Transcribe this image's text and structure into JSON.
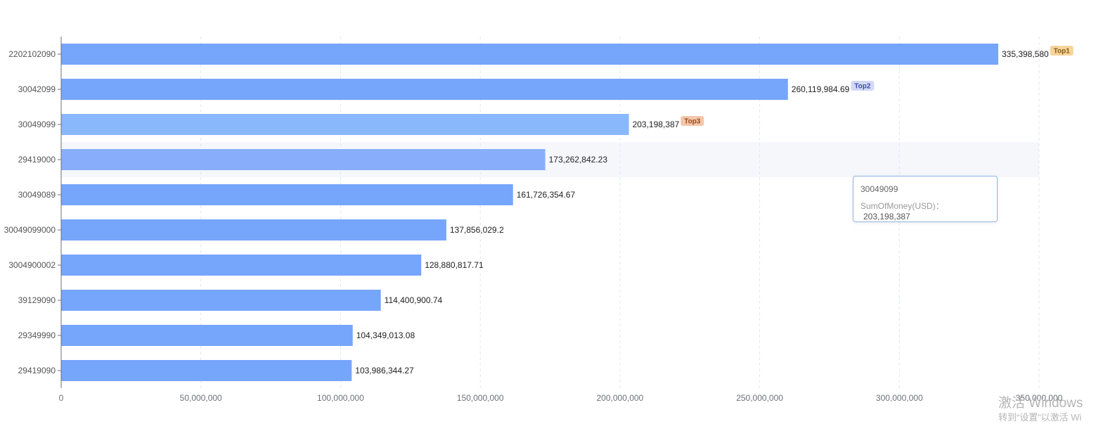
{
  "chart_data": {
    "type": "bar",
    "orientation": "horizontal",
    "categories": [
      "2202102090",
      "30042099",
      "30049099",
      "29419000",
      "30049089",
      "30049099000",
      "3004900002",
      "39129090",
      "29349990",
      "29419090"
    ],
    "series": [
      {
        "values": [
          335398580,
          260119984.69,
          203198387,
          173262842.23,
          161726354.67,
          137856029.2,
          128880817.71,
          114400900.74,
          104349013.08,
          103986344.27
        ]
      }
    ],
    "value_labels": [
      "335,398,580",
      "260,119,984.69",
      "203,198,387",
      "173,262,842.23",
      "161,726,354.67",
      "137,856,029.2",
      "128,880,817.71",
      "114,400,900.74",
      "104,349,013.08",
      "103,986,344.27"
    ],
    "xlim": [
      0,
      350000000
    ],
    "x_ticks": [
      0,
      50000000,
      100000000,
      150000000,
      200000000,
      250000000,
      300000000,
      350000000
    ],
    "x_tick_labels": [
      "0",
      "50,000,000",
      "100,000,000",
      "150,000,000",
      "200,000,000",
      "250,000,000",
      "300,000,000",
      "350,000,000"
    ],
    "grid": true,
    "badges": [
      {
        "index": 0,
        "text": "Top1",
        "bg": "#f6d49b",
        "color": "#8a5a14"
      },
      {
        "index": 1,
        "text": "Top2",
        "bg": "#d3d9f5",
        "color": "#3d4fa3"
      },
      {
        "index": 2,
        "text": "Top3",
        "bg": "#f3c6a9",
        "color": "#9a4a22"
      }
    ],
    "colors": {
      "bar": "#76a5fc",
      "bar_emphasis": "#8ab8fd",
      "bar_hover": "#88aefb",
      "hover_band": "#f5f7fb",
      "axis": "#6e7079",
      "grid": "#e0e6f1"
    },
    "emphasis_index": 2,
    "hover_index": 3
  },
  "tooltip": {
    "title": "30049099",
    "label": "SumOfMoney(USD)：",
    "value": "203,198,387"
  },
  "watermark": {
    "line1": "激活 Windows",
    "line2": "转到“设置”以激活 Wi"
  }
}
